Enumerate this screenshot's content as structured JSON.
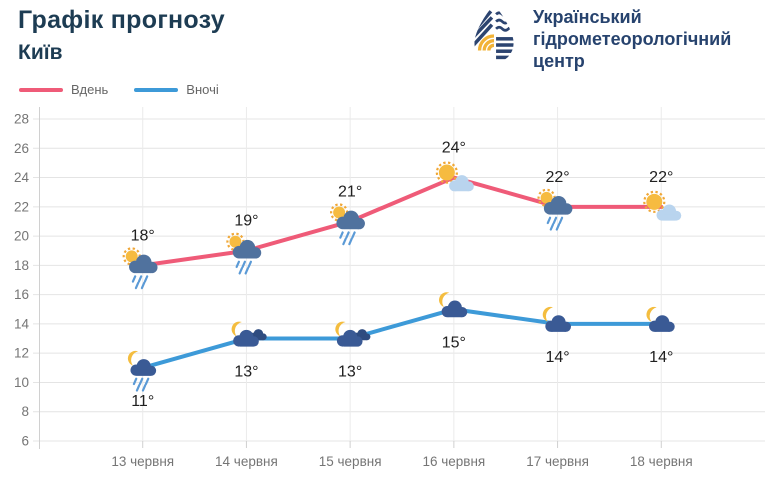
{
  "header": {
    "title": "Графік прогнозу",
    "subtitle": "Київ",
    "org": {
      "line1": "Український",
      "line2": "гідрометеорологічний",
      "line3": "центр"
    }
  },
  "legend": [
    {
      "label": "Вдень",
      "color": "#ef5b78"
    },
    {
      "label": "Вночі",
      "color": "#3d9ad8"
    }
  ],
  "chart_data": {
    "type": "line",
    "title": "Графік прогнозу Київ",
    "categories": [
      "13 червня",
      "14 червня",
      "15 червня",
      "16 червня",
      "17 червня",
      "18 червня"
    ],
    "series": [
      {
        "name": "Вдень",
        "color": "#ef5b78",
        "values": [
          18,
          19,
          21,
          24,
          22,
          22
        ],
        "point_labels": [
          "18°",
          "19°",
          "21°",
          "24°",
          "22°",
          "22°"
        ],
        "icons": [
          "sun-rain-cloud",
          "sun-rain-cloud",
          "sun-rain-cloud",
          "sun-light-cloud",
          "sun-rain-cloud",
          "sun-light-cloud"
        ],
        "label_side": "above"
      },
      {
        "name": "Вночі",
        "color": "#3d9ad8",
        "values": [
          11,
          13,
          13,
          15,
          14,
          14
        ],
        "point_labels": [
          "11°",
          "13°",
          "13°",
          "15°",
          "14°",
          "14°"
        ],
        "icons": [
          "moon-rain-cloud",
          "moon-two-clouds",
          "moon-two-clouds",
          "moon-cloud",
          "moon-cloud",
          "moon-cloud"
        ],
        "label_side": "below"
      }
    ],
    "xlabel": "",
    "ylabel": "",
    "ylim": [
      6,
      28
    ],
    "ytick_step": 2,
    "grid": true,
    "legend_position": "top-left"
  },
  "colors": {
    "day_line": "#ef5b78",
    "night_line": "#3d9ad8",
    "grid": "#e4e4e4",
    "grid_vertical": "#ebebeb",
    "axis": "#d0d0d0",
    "tick_text": "#757575",
    "point_label": "#202020",
    "title": "#1d3c53",
    "org_text": "#27436e",
    "legend_text": "#666666",
    "sun": "#f6bb40",
    "sun_ring": "#f0a737",
    "moon": "#f4bd3f",
    "cloud_day": "#50729e",
    "cloud_night": "#3a5a95",
    "cloud_night_dark": "#2f4c80",
    "cloud_light": "#b9d4ee",
    "rain": "#5b9ad6"
  }
}
